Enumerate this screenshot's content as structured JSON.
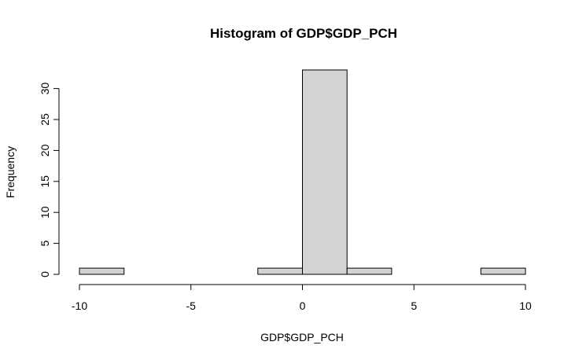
{
  "chart_data": {
    "type": "bar",
    "title": "Histogram of GDP$GDP_PCH",
    "xlabel": "GDP$GDP_PCH",
    "ylabel": "Frequency",
    "bins": [
      {
        "start": -10,
        "end": -8,
        "count": 1
      },
      {
        "start": -8,
        "end": -6,
        "count": 0
      },
      {
        "start": -6,
        "end": -4,
        "count": 0
      },
      {
        "start": -4,
        "end": -2,
        "count": 0
      },
      {
        "start": -2,
        "end": 0,
        "count": 1
      },
      {
        "start": 0,
        "end": 2,
        "count": 33
      },
      {
        "start": 2,
        "end": 4,
        "count": 1
      },
      {
        "start": 4,
        "end": 6,
        "count": 0
      },
      {
        "start": 6,
        "end": 8,
        "count": 0
      },
      {
        "start": 8,
        "end": 10,
        "count": 1
      }
    ],
    "xlim": [
      -10,
      10
    ],
    "ylim": [
      0,
      33
    ],
    "x_ticks": [
      -10,
      -5,
      0,
      5,
      10
    ],
    "x_tick_labels": [
      "-10",
      "-5",
      "0",
      "5",
      "10"
    ],
    "y_ticks": [
      0,
      5,
      10,
      15,
      20,
      25,
      30
    ],
    "y_tick_labels": [
      "0",
      "5",
      "10",
      "15",
      "20",
      "25",
      "30"
    ],
    "grid": false,
    "bar_color": "#d3d3d3",
    "edge_color": "#000000"
  }
}
